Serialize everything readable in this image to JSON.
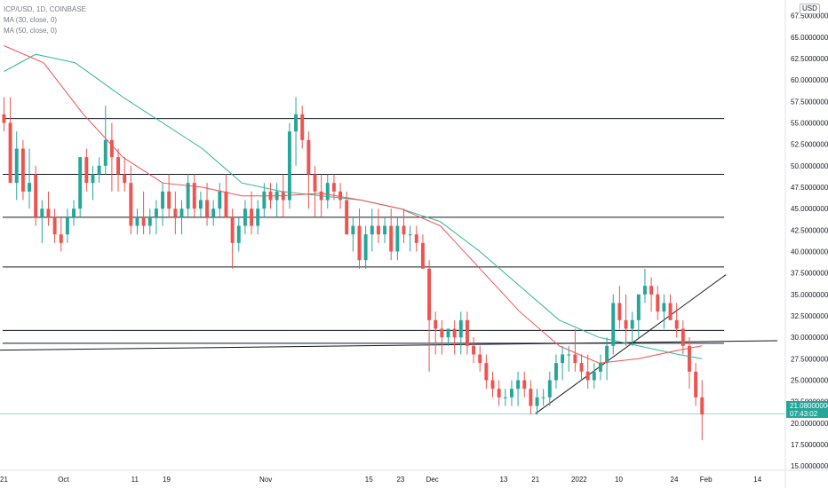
{
  "legend": {
    "symbol": "ICP/USD, 1D, COINBASE",
    "ma30": "MA (30, close, 0)",
    "ma50": "MA (50, close, 0)"
  },
  "unit_badge": "USD",
  "last_price": {
    "value": "21.08000000",
    "countdown": "07:43:02"
  },
  "colors": {
    "up": "#26a69a",
    "down": "#ef5350",
    "ma30": "#f05252",
    "ma50": "#2fb596",
    "lines": "#131722"
  },
  "chart_data": {
    "type": "candlestick",
    "y_ticks": [
      "67.50000000",
      "65.00000000",
      "62.50000000",
      "60.00000000",
      "57.50000000",
      "55.00000000",
      "52.50000000",
      "50.00000000",
      "47.50000000",
      "45.00000000",
      "42.50000000",
      "40.00000000",
      "37.50000000",
      "35.00000000",
      "32.50000000",
      "30.00000000",
      "27.50000000",
      "25.00000000",
      "22.50000000",
      "20.00000000",
      "17.50000000",
      "15.00000000"
    ],
    "ylim": [
      14.5,
      68.5
    ],
    "x_ticks": [
      "21",
      "Oct",
      "11",
      "19",
      "Nov",
      "15",
      "23",
      "Dec",
      "13",
      "21",
      "2022",
      "10",
      "24",
      "Feb",
      "14"
    ],
    "x_tick_days": [
      0,
      15,
      33,
      41,
      66,
      92,
      100,
      108,
      126,
      134,
      145,
      155,
      169,
      177,
      190
    ],
    "xlim": [
      -1,
      197
    ],
    "candles_ohlc": [
      [
        56,
        58,
        54,
        55
      ],
      [
        55,
        58,
        50,
        48
      ],
      [
        48,
        54,
        46,
        52
      ],
      [
        52,
        53,
        46,
        47
      ],
      [
        47,
        52,
        45,
        48
      ],
      [
        49,
        50,
        43,
        44
      ],
      [
        44,
        46,
        41,
        45
      ],
      [
        45,
        47,
        43,
        44
      ],
      [
        44,
        45,
        41,
        42
      ],
      [
        42,
        44,
        40,
        41
      ],
      [
        42,
        45,
        41,
        44
      ],
      [
        44,
        46,
        43,
        45
      ],
      [
        45,
        51,
        44,
        51
      ],
      [
        51,
        52,
        47,
        48
      ],
      [
        48,
        50,
        46,
        49
      ],
      [
        49,
        51,
        48,
        50
      ],
      [
        50,
        57,
        49,
        53
      ],
      [
        53,
        55,
        47,
        51
      ],
      [
        51,
        52,
        47,
        49
      ],
      [
        49,
        51,
        47,
        48
      ],
      [
        48,
        50,
        42,
        43
      ],
      [
        43,
        45,
        42,
        44
      ],
      [
        44,
        47,
        42,
        43
      ],
      [
        43,
        45,
        42,
        44
      ],
      [
        44,
        46,
        42,
        45
      ],
      [
        45,
        48,
        43,
        47
      ],
      [
        47,
        49,
        44,
        45
      ],
      [
        45,
        47,
        42,
        44
      ],
      [
        44,
        46,
        42,
        45
      ],
      [
        45,
        49,
        44,
        48
      ],
      [
        48,
        49,
        44,
        45
      ],
      [
        45,
        47,
        44,
        46
      ],
      [
        46,
        48,
        43,
        44
      ],
      [
        44,
        46,
        43,
        45
      ],
      [
        45,
        48,
        44,
        47
      ],
      [
        47,
        49,
        44,
        44
      ],
      [
        44,
        45,
        38,
        41
      ],
      [
        41,
        44,
        40,
        43
      ],
      [
        43,
        46,
        42,
        45
      ],
      [
        45,
        47,
        42,
        43
      ],
      [
        43,
        46,
        42,
        45
      ],
      [
        45,
        48,
        44,
        47
      ],
      [
        47,
        48,
        45,
        46
      ],
      [
        46,
        48,
        44,
        47
      ],
      [
        47,
        49,
        44,
        46
      ],
      [
        46,
        55,
        45,
        54
      ],
      [
        54,
        58,
        50,
        56
      ],
      [
        56,
        57,
        52,
        53
      ],
      [
        53,
        54,
        45,
        49
      ],
      [
        49,
        50,
        44,
        47
      ],
      [
        47,
        49,
        44,
        46
      ],
      [
        46,
        49,
        45,
        48
      ],
      [
        48,
        49,
        46,
        47
      ],
      [
        47,
        48,
        45,
        46
      ],
      [
        46,
        47,
        42,
        42
      ],
      [
        42,
        44,
        40,
        43
      ],
      [
        43,
        45,
        38,
        39
      ],
      [
        39,
        43,
        38,
        42
      ],
      [
        42,
        45,
        40,
        43
      ],
      [
        43,
        45,
        41,
        42
      ],
      [
        42,
        44,
        41,
        43
      ],
      [
        43,
        45,
        39,
        40
      ],
      [
        40,
        44,
        39,
        43
      ],
      [
        43,
        45,
        41,
        42
      ],
      [
        42,
        43,
        40,
        42
      ],
      [
        42,
        43,
        40,
        41
      ],
      [
        41,
        42,
        38,
        38
      ],
      [
        38,
        39,
        26,
        32
      ],
      [
        32,
        33,
        28,
        31
      ],
      [
        31,
        32,
        28,
        30
      ],
      [
        30,
        31,
        29,
        31
      ],
      [
        31,
        32,
        28,
        30
      ],
      [
        30,
        33,
        28,
        32
      ],
      [
        32,
        33,
        28,
        29
      ],
      [
        29,
        30,
        27,
        28
      ],
      [
        28,
        29,
        26,
        27
      ],
      [
        27,
        28,
        24,
        25
      ],
      [
        25,
        26,
        23,
        24
      ],
      [
        24,
        25,
        22,
        23
      ],
      [
        23,
        24,
        22,
        23
      ],
      [
        23,
        25,
        22,
        24
      ],
      [
        24,
        26,
        22,
        25
      ],
      [
        25,
        26,
        23,
        24
      ],
      [
        24,
        25,
        21,
        22
      ],
      [
        22,
        24,
        21,
        23
      ],
      [
        23,
        24,
        22,
        23
      ],
      [
        23,
        26,
        22,
        25
      ],
      [
        25,
        28,
        24,
        27
      ],
      [
        27,
        29,
        25,
        28
      ],
      [
        28,
        29,
        26,
        28
      ],
      [
        28,
        31,
        26,
        27
      ],
      [
        27,
        28,
        25,
        26
      ],
      [
        26,
        28,
        24,
        25
      ],
      [
        25,
        27,
        24,
        26
      ],
      [
        26,
        28,
        25,
        27
      ],
      [
        27,
        30,
        25,
        29
      ],
      [
        29,
        35,
        28,
        34
      ],
      [
        34,
        36,
        31,
        32
      ],
      [
        32,
        35,
        29,
        31
      ],
      [
        31,
        33,
        29,
        32
      ],
      [
        32,
        35,
        30,
        35
      ],
      [
        35,
        38,
        34,
        36
      ],
      [
        36,
        37,
        33,
        35
      ],
      [
        35,
        36,
        32,
        33
      ],
      [
        33,
        35,
        31,
        34
      ],
      [
        34,
        35,
        32,
        32
      ],
      [
        32,
        34,
        30,
        31
      ],
      [
        31,
        32,
        28,
        29
      ],
      [
        29,
        30,
        24,
        26
      ],
      [
        26,
        27,
        22,
        23
      ],
      [
        23,
        25,
        18,
        21
      ]
    ],
    "candle_start_day": 0,
    "candle_step_days": 1.6,
    "ma30_points": [
      [
        0,
        64
      ],
      [
        10,
        62
      ],
      [
        20,
        56
      ],
      [
        30,
        51
      ],
      [
        40,
        48
      ],
      [
        50,
        47.5
      ],
      [
        60,
        46.5
      ],
      [
        70,
        46.5
      ],
      [
        80,
        46.8
      ],
      [
        90,
        46
      ],
      [
        100,
        45
      ],
      [
        110,
        43
      ],
      [
        120,
        38
      ],
      [
        130,
        33
      ],
      [
        140,
        29
      ],
      [
        150,
        27
      ],
      [
        160,
        27.5
      ],
      [
        170,
        28.5
      ],
      [
        176,
        29
      ]
    ],
    "ma50_points": [
      [
        0,
        61
      ],
      [
        8,
        63
      ],
      [
        18,
        62
      ],
      [
        30,
        58
      ],
      [
        40,
        55
      ],
      [
        50,
        52
      ],
      [
        60,
        48
      ],
      [
        70,
        47
      ],
      [
        80,
        46.5
      ],
      [
        90,
        46
      ],
      [
        100,
        45
      ],
      [
        110,
        43.5
      ],
      [
        120,
        40
      ],
      [
        130,
        36
      ],
      [
        140,
        32
      ],
      [
        150,
        30
      ],
      [
        160,
        29
      ],
      [
        170,
        28
      ],
      [
        176,
        27.5
      ]
    ],
    "horizontal_lines": [
      55.5,
      49,
      44,
      38.2,
      30.8,
      29.3
    ],
    "sloped_levels": [
      [
        -1,
        28.5,
        195,
        29.6
      ]
    ],
    "trend_line": [
      [
        134,
        21.1
      ],
      [
        182,
        37.3
      ]
    ],
    "last_price_level": 21.08
  }
}
